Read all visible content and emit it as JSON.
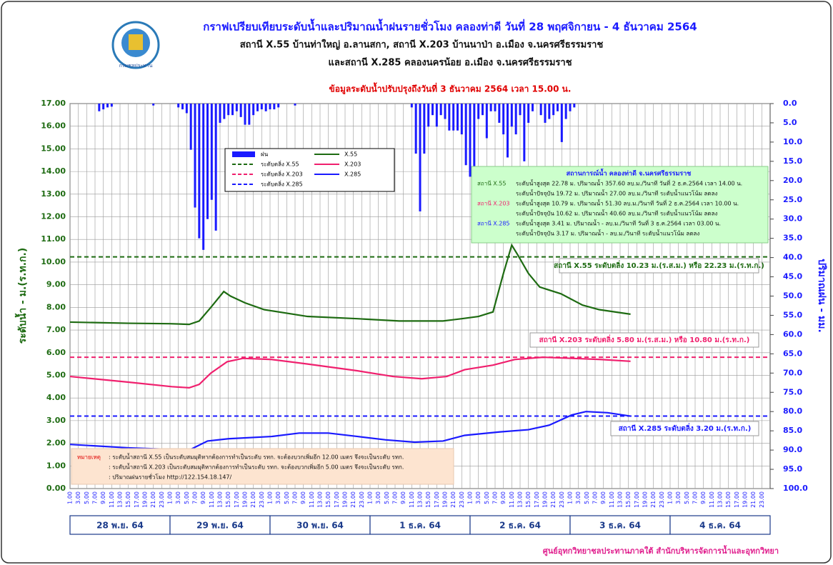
{
  "logo_text": "กรมชลประทาน",
  "footer": "ศูนย์อุทกวิทยาชลประทานภาคใต้ สำนักบริหารจัดการน้ำและอุทกวิทยา",
  "chart_data": {
    "type": "line",
    "title": "กราฟเปรียบเทียบระดับน้ำและปริมาณน้ำฝนรายชั่วโมง คลองท่าดี วันที่ 28 พฤศจิกายน - 4 ธันวาคม 2564",
    "subtitle": [
      "สถานี X.55 บ้านท่าใหญ่ อ.ลานสกา,  สถานี X.203 บ้านนาป่า อ.เมือง จ.นครศรีธรรมราช",
      "และสถานี X.285 คลองนครน้อย อ.เมือง จ.นครศรีธรรมราช"
    ],
    "update_note": "ข้อมูลระดับน้ำปรับปรุงถึงวันที่ 3 ธันวาคม 2564 เวลา 15.00 น.",
    "y_label": "ระดับน้ำ  -  ม.(ร.ท.ก.)",
    "y2_label": "ปริมาณฝน - มม.",
    "xlim": [
      0,
      168
    ],
    "xticks": [
      {
        "value": 0,
        "label": "1.00"
      },
      {
        "value": 2,
        "label": "3.00"
      },
      {
        "value": 4,
        "label": "5.00"
      },
      {
        "value": 6,
        "label": "7.00"
      },
      {
        "value": 8,
        "label": "9.00"
      },
      {
        "value": 10,
        "label": "11.00"
      },
      {
        "value": 12,
        "label": "13.00"
      },
      {
        "value": 14,
        "label": "15.00"
      },
      {
        "value": 16,
        "label": "17.00"
      },
      {
        "value": 18,
        "label": "19.00"
      },
      {
        "value": 20,
        "label": "21.00"
      },
      {
        "value": 22,
        "label": "23.00"
      },
      {
        "value": 24,
        "label": "1.00"
      },
      {
        "value": 26,
        "label": "3.00"
      },
      {
        "value": 28,
        "label": "5.00"
      },
      {
        "value": 30,
        "label": "7.00"
      },
      {
        "value": 32,
        "label": "9.00"
      },
      {
        "value": 34,
        "label": "11.00"
      },
      {
        "value": 36,
        "label": "13.00"
      },
      {
        "value": 38,
        "label": "15.00"
      },
      {
        "value": 40,
        "label": "17.00"
      },
      {
        "value": 42,
        "label": "19.00"
      },
      {
        "value": 44,
        "label": "21.00"
      },
      {
        "value": 46,
        "label": "23.00"
      },
      {
        "value": 48,
        "label": "1.00"
      },
      {
        "value": 50,
        "label": "3.00"
      },
      {
        "value": 52,
        "label": "5.00"
      },
      {
        "value": 54,
        "label": "7.00"
      },
      {
        "value": 56,
        "label": "9.00"
      },
      {
        "value": 58,
        "label": "11.00"
      },
      {
        "value": 60,
        "label": "13.00"
      },
      {
        "value": 62,
        "label": "15.00"
      },
      {
        "value": 64,
        "label": "17.00"
      },
      {
        "value": 66,
        "label": "19.00"
      },
      {
        "value": 68,
        "label": "21.00"
      },
      {
        "value": 70,
        "label": "23.00"
      },
      {
        "value": 72,
        "label": "1.00"
      },
      {
        "value": 74,
        "label": "3.00"
      },
      {
        "value": 76,
        "label": "5.00"
      },
      {
        "value": 78,
        "label": "7.00"
      },
      {
        "value": 80,
        "label": "9.00"
      },
      {
        "value": 82,
        "label": "11.00"
      },
      {
        "value": 84,
        "label": "13.00"
      },
      {
        "value": 86,
        "label": "15.00"
      },
      {
        "value": 88,
        "label": "17.00"
      },
      {
        "value": 90,
        "label": "19.00"
      },
      {
        "value": 92,
        "label": "21.00"
      },
      {
        "value": 94,
        "label": "23.00"
      },
      {
        "value": 96,
        "label": "1.00"
      },
      {
        "value": 98,
        "label": "3.00"
      },
      {
        "value": 100,
        "label": "5.00"
      },
      {
        "value": 102,
        "label": "7.00"
      },
      {
        "value": 104,
        "label": "9.00"
      },
      {
        "value": 106,
        "label": "11.00"
      },
      {
        "value": 108,
        "label": "13.00"
      },
      {
        "value": 110,
        "label": "15.00"
      },
      {
        "value": 112,
        "label": "17.00"
      },
      {
        "value": 114,
        "label": "19.00"
      },
      {
        "value": 116,
        "label": "21.00"
      },
      {
        "value": 118,
        "label": "23.00"
      },
      {
        "value": 120,
        "label": "1.00"
      },
      {
        "value": 122,
        "label": "3.00"
      },
      {
        "value": 124,
        "label": "5.00"
      },
      {
        "value": 126,
        "label": "7.00"
      },
      {
        "value": 128,
        "label": "9.00"
      },
      {
        "value": 130,
        "label": "11.00"
      },
      {
        "value": 132,
        "label": "13.00"
      },
      {
        "value": 134,
        "label": "15.00"
      },
      {
        "value": 136,
        "label": "17.00"
      },
      {
        "value": 138,
        "label": "19.00"
      },
      {
        "value": 140,
        "label": "21.00"
      },
      {
        "value": 142,
        "label": "23.00"
      },
      {
        "value": 144,
        "label": "1.00"
      },
      {
        "value": 146,
        "label": "3.00"
      },
      {
        "value": 148,
        "label": "5.00"
      },
      {
        "value": 150,
        "label": "7.00"
      },
      {
        "value": 152,
        "label": "9.00"
      },
      {
        "value": 154,
        "label": "11.00"
      },
      {
        "value": 156,
        "label": "13.00"
      },
      {
        "value": 158,
        "label": "15.00"
      },
      {
        "value": 160,
        "label": "17.00"
      },
      {
        "value": 162,
        "label": "19.00"
      },
      {
        "value": 164,
        "label": "21.00"
      },
      {
        "value": 166,
        "label": "23.00"
      }
    ],
    "days": [
      "28 พ.ย. 64",
      "29 พ.ย. 64",
      "30 พ.ย. 64",
      "1 ธ.ค. 64",
      "2 ธ.ค. 64",
      "3 ธ.ค. 64",
      "4 ธ.ค. 64"
    ],
    "ylim": [
      0,
      17
    ],
    "yticks": [
      {
        "value": 0,
        "label": "0.00"
      },
      {
        "value": 1,
        "label": "1.00"
      },
      {
        "value": 2,
        "label": "2.00"
      },
      {
        "value": 3,
        "label": "3.00"
      },
      {
        "value": 4,
        "label": "4.00"
      },
      {
        "value": 5,
        "label": "5.00"
      },
      {
        "value": 6,
        "label": "6.00"
      },
      {
        "value": 7,
        "label": "7.00"
      },
      {
        "value": 8,
        "label": "8.00"
      },
      {
        "value": 9,
        "label": "9.00"
      },
      {
        "value": 10,
        "label": "10.00"
      },
      {
        "value": 11,
        "label": "11.00"
      },
      {
        "value": 12,
        "label": "12.00"
      },
      {
        "value": 13,
        "label": "13.00"
      },
      {
        "value": 14,
        "label": "14.00"
      },
      {
        "value": 15,
        "label": "15.00"
      },
      {
        "value": 16,
        "label": "16.00"
      },
      {
        "value": 17,
        "label": "17.00"
      }
    ],
    "y2lim": [
      0,
      100
    ],
    "y2_inverted": true,
    "y2ticks": [
      {
        "value": 0,
        "label": "0.0"
      },
      {
        "value": 5,
        "label": "5.0"
      },
      {
        "value": 10,
        "label": "10.0"
      },
      {
        "value": 15,
        "label": "15.0"
      },
      {
        "value": 20,
        "label": "20.0"
      },
      {
        "value": 25,
        "label": "25.0"
      },
      {
        "value": 30,
        "label": "30.0"
      },
      {
        "value": 35,
        "label": "35.0"
      },
      {
        "value": 40,
        "label": "40.0"
      },
      {
        "value": 45,
        "label": "45.0"
      },
      {
        "value": 50,
        "label": "50.0"
      },
      {
        "value": 55,
        "label": "55.0"
      },
      {
        "value": 60,
        "label": "60.0"
      },
      {
        "value": 65,
        "label": "65.0"
      },
      {
        "value": 70,
        "label": "70.0"
      },
      {
        "value": 75,
        "label": "75.0"
      },
      {
        "value": 80,
        "label": "80.0"
      },
      {
        "value": 85,
        "label": "85.0"
      },
      {
        "value": 90,
        "label": "90.0"
      },
      {
        "value": 95,
        "label": "95.0"
      },
      {
        "value": 100,
        "label": "100.0"
      }
    ],
    "grid": true,
    "series": [
      {
        "name": "ฝน",
        "type": "bar",
        "axis": "y2",
        "color": "#1a1aff",
        "x": [
          7,
          8,
          9,
          10,
          20,
          26,
          27,
          28,
          29,
          30,
          31,
          32,
          33,
          34,
          35,
          36,
          37,
          38,
          39,
          40,
          41,
          42,
          43,
          44,
          45,
          46,
          47,
          48,
          49,
          50,
          54,
          82,
          83,
          84,
          85,
          86,
          87,
          88,
          89,
          90,
          91,
          92,
          93,
          94,
          95,
          96,
          97,
          98,
          99,
          100,
          101,
          102,
          103,
          104,
          105,
          106,
          107,
          108,
          109,
          110,
          111,
          113,
          114,
          115,
          116,
          117,
          118,
          119,
          120,
          121
        ],
        "values": [
          2,
          1.5,
          1,
          0.8,
          0.5,
          1,
          1.5,
          2.5,
          12,
          27,
          35,
          38,
          30,
          25,
          33,
          5,
          4,
          3,
          3,
          2,
          3.5,
          5.5,
          5.5,
          3,
          2,
          1.5,
          2,
          1.5,
          1.5,
          1,
          0.5,
          1,
          13,
          28,
          13,
          6,
          3,
          6,
          3,
          4,
          7,
          7,
          7,
          8,
          16,
          19,
          29,
          4,
          3,
          9,
          2,
          2,
          5,
          8,
          14,
          6,
          8,
          3,
          15,
          5,
          2,
          3,
          5,
          4,
          3,
          2,
          10,
          4,
          2,
          1
        ]
      },
      {
        "name": "X.55",
        "color": "#1e6b12",
        "x": [
          0,
          14,
          24,
          28.6,
          31,
          33.8,
          36.9,
          38.5,
          42,
          46.6,
          57,
          69,
          79,
          89.5,
          94,
          98,
          101.5,
          104,
          106,
          107.5,
          110,
          112.7,
          117.8,
          123,
          127,
          134.5
        ],
        "values": [
          7.35,
          7.3,
          7.28,
          7.25,
          7.4,
          8.0,
          8.7,
          8.5,
          8.2,
          7.9,
          7.6,
          7.5,
          7.4,
          7.4,
          7.5,
          7.6,
          7.8,
          9.5,
          10.75,
          10.3,
          9.5,
          8.9,
          8.6,
          8.1,
          7.9,
          7.7
        ]
      },
      {
        "name": "X.203",
        "color": "#f0206e",
        "x": [
          0,
          14,
          24.4,
          28.6,
          31,
          33.8,
          37.7,
          41.5,
          48.4,
          57,
          69,
          77.5,
          84.4,
          90.4,
          94.7,
          101.5,
          106.7,
          113.5,
          120.4,
          127.3,
          134.5
        ],
        "values": [
          4.95,
          4.7,
          4.5,
          4.45,
          4.6,
          5.1,
          5.6,
          5.75,
          5.7,
          5.5,
          5.2,
          4.95,
          4.85,
          4.95,
          5.25,
          5.45,
          5.7,
          5.8,
          5.75,
          5.7,
          5.62
        ]
      },
      {
        "name": "X.285",
        "color": "#1a1aff",
        "x": [
          0,
          14,
          28.6,
          33,
          38,
          48.4,
          55,
          62,
          69,
          75.8,
          82.7,
          89.5,
          94.7,
          103,
          110,
          115,
          120.4,
          123.8,
          129,
          134.5
        ],
        "values": [
          1.95,
          1.8,
          1.7,
          2.1,
          2.2,
          2.3,
          2.45,
          2.45,
          2.3,
          2.15,
          2.05,
          2.1,
          2.35,
          2.5,
          2.6,
          2.8,
          3.25,
          3.4,
          3.35,
          3.2
        ]
      }
    ],
    "reference_lines": [
      {
        "name": "ระดับตลิ่ง X.55",
        "value": 10.23,
        "color": "#1e6b12",
        "label": "สถานี X.55 ระดับตลิ่ง 10.23 ม.(ร.ส.ม.) หรือ 22.23 ม.(ร.ท.ก.)"
      },
      {
        "name": "ระดับตลิ่ง X.203",
        "value": 5.8,
        "color": "#f0206e",
        "label": "สถานี X.203 ระดับตลิ่ง 5.80 ม.(ร.ส.ม.) หรือ 10.80 ม.(ร.ท.ก.)"
      },
      {
        "name": "ระดับตลิ่ง X.285",
        "value": 3.2,
        "color": "#1a1aff",
        "label": "สถานี X.285 ระดับตลิ่ง 3.20 ม.(ร.ท.ก.)"
      }
    ],
    "info_box": {
      "title": "สถานการณ์น้ำ คลองท่าดี จ.นครศรีธรรมราช",
      "stations": [
        {
          "label": "สถานี X.55",
          "color": "#1e6b12",
          "lines": [
            "ระดับน้ำสูงสุด 22.78 ม. ปริมาณน้ำ 357.60 ลบ.ม./วินาที วันที่ 2 ธ.ค.2564 เวลา 14.00 น.",
            "ระดับน้ำปัจจุบัน 19.72 ม. ปริมาณน้ำ 27.00 ลบ.ม./วินาที ระดับน้ำแนวโน้ม ลดลง"
          ]
        },
        {
          "label": "สถานี X.203",
          "color": "#f0206e",
          "lines": [
            "ระดับน้ำสูงสุด 10.79 ม. ปริมาณน้ำ 51.30 ลบ.ม./วินาที วันที่ 2 ธ.ค.2564 เวลา 10.00 น.",
            "ระดับน้ำปัจจุบัน 10.62 ม. ปริมาณน้ำ 40.60 ลบ.ม./วินาที ระดับน้ำแนวโน้ม ลดลง"
          ]
        },
        {
          "label": "สถานี X.285",
          "color": "#1a1aff",
          "lines": [
            "ระดับน้ำสูงสุด 3.41 ม. ปริมาณน้ำ - ลบ.ม./วินาที วันที่ 3 ธ.ค.2564 เวลา 03.00 น.",
            "ระดับน้ำปัจจุบัน 3.17 ม. ปริมาณน้ำ - ลบ.ม./วินาที ระดับน้ำแนวโน้ม ลดลง"
          ]
        }
      ]
    },
    "note": {
      "label": "หมายเหตุ",
      "lines": [
        ": ระดับน้ำสถานี X.55  เป็นระดับสมมุติหากต้องการทำเป็นระดับ รทก. จะต้องบวกเพิ่มอีก 12.00 เมตร จึงจะเป็นระดับ รทก.",
        ": ระดับน้ำสถานี X.203  เป็นระดับสมมุติหากต้องการทำเป็นระดับ รทก. จะต้องบวกเพิ่มอีก 5.00 เมตร จึงจะเป็นระดับ รทก.",
        ": ปริมาณฝนรายชั่วโมง http://122.154.18.147/"
      ]
    }
  }
}
